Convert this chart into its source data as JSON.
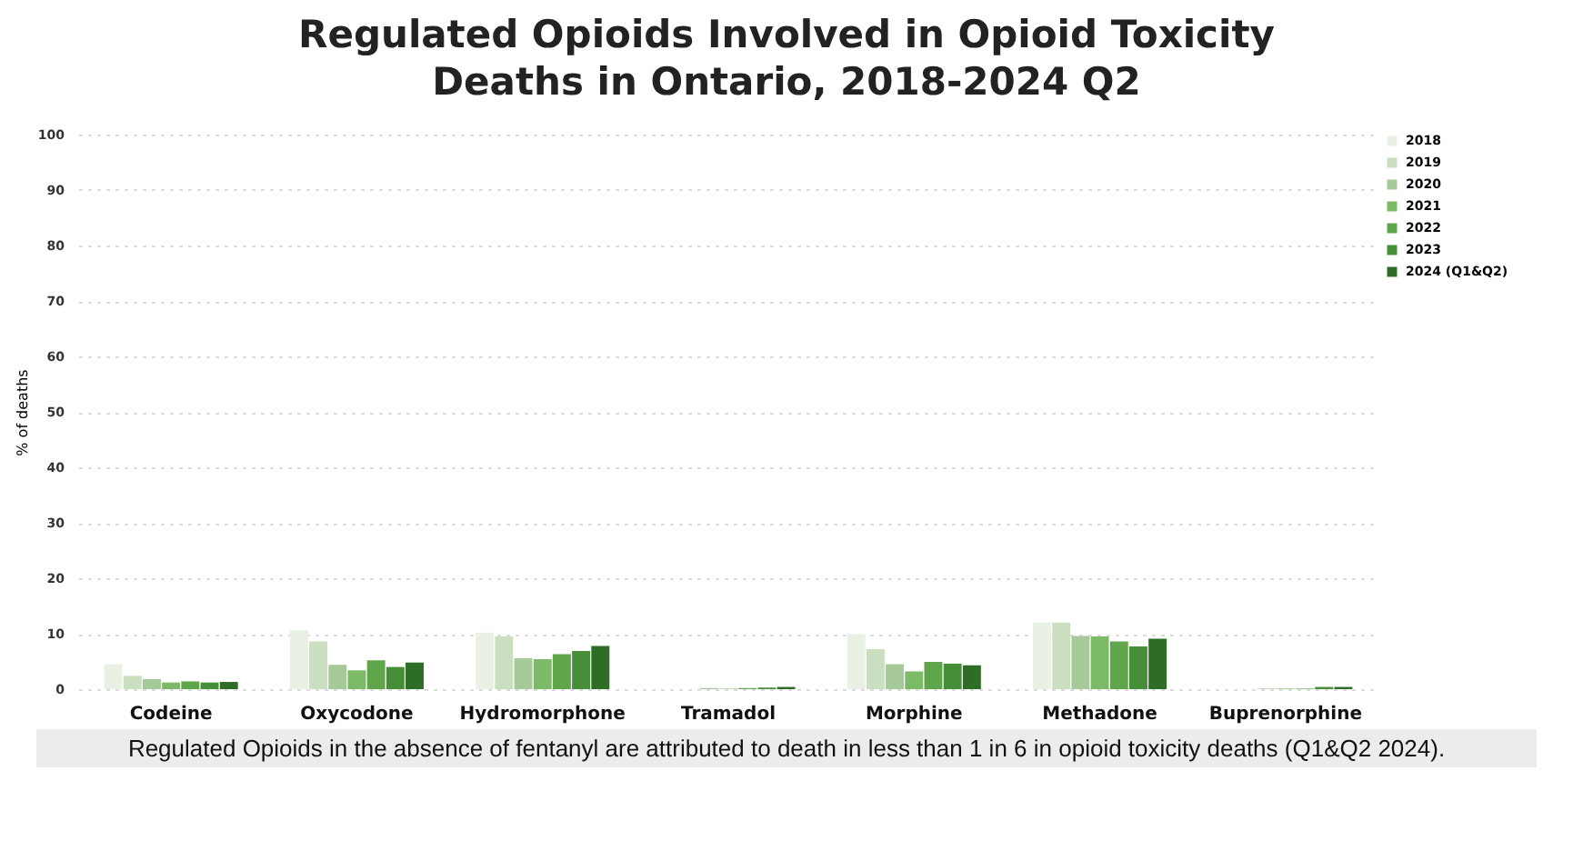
{
  "chart_data": {
    "type": "bar",
    "title": "Regulated Opioids Involved in Opioid Toxicity Deaths in Ontario, 2018-2024 Q2",
    "ylabel": "% of deaths",
    "categories": [
      "Codeine",
      "Oxycodone",
      "Hydromorphone",
      "Tramadol",
      "Morphine",
      "Methadone",
      "Buprenorphine"
    ],
    "series": [
      {
        "name": "2018",
        "color": "#e8f1e3",
        "values": [
          4.5,
          10.6,
          10.2,
          null,
          9.9,
          12.0,
          null
        ]
      },
      {
        "name": "2019",
        "color": "#cadfc0",
        "values": [
          2.4,
          8.6,
          9.5,
          null,
          7.2,
          12.0,
          null
        ]
      },
      {
        "name": "2020",
        "color": "#a6c99a",
        "values": [
          1.8,
          4.4,
          5.6,
          0.2,
          4.5,
          9.6,
          0.1
        ]
      },
      {
        "name": "2021",
        "color": "#7dba68",
        "values": [
          1.2,
          3.4,
          5.4,
          0.1,
          3.2,
          9.5,
          0.1
        ]
      },
      {
        "name": "2022",
        "color": "#5fa54a",
        "values": [
          1.4,
          5.2,
          6.3,
          0.2,
          4.9,
          8.6,
          0.1
        ]
      },
      {
        "name": "2023",
        "color": "#478e38",
        "values": [
          1.2,
          4.0,
          6.9,
          0.3,
          4.6,
          7.7,
          0.4
        ]
      },
      {
        "name": "2024 (Q1&Q2)",
        "color": "#2d6d25",
        "values": [
          1.3,
          4.8,
          7.8,
          0.4,
          4.3,
          9.1,
          0.4
        ]
      }
    ],
    "ylim": [
      0,
      100
    ],
    "yticks": [
      0,
      10,
      20,
      30,
      40,
      50,
      60,
      70,
      80,
      90,
      100
    ],
    "grid": "y",
    "legend": "right",
    "annotations": [
      "Regulated Opioids in the absence of fentanyl are attributed to death in less than 1 in 6 in opioid toxicity deaths (Q1&Q2 2024)."
    ]
  }
}
